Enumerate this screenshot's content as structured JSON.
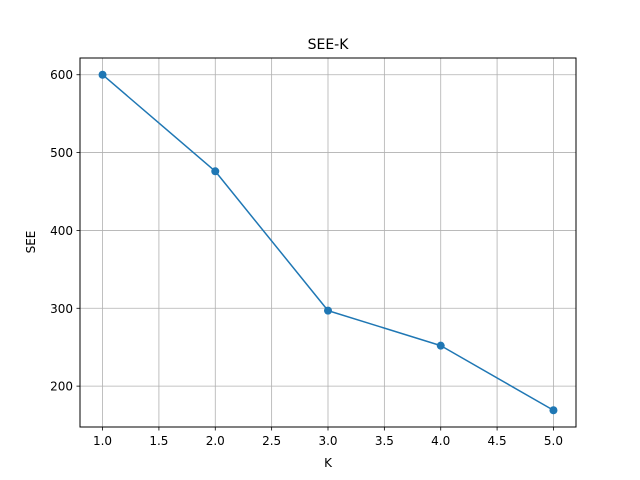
{
  "chart_data": {
    "type": "line",
    "title": "SEE-K",
    "xlabel": "K",
    "ylabel": "SEE",
    "x": [
      1.0,
      2.0,
      3.0,
      4.0,
      5.0
    ],
    "series": [
      {
        "values": [
          600,
          476,
          297,
          252,
          169
        ],
        "color": "#1f77b4",
        "marker": "circle"
      }
    ],
    "xlim": [
      0.8,
      5.2
    ],
    "ylim": [
      147.5,
      621.5
    ],
    "xticks": [
      "1.0",
      "1.5",
      "2.0",
      "2.5",
      "3.0",
      "3.5",
      "4.0",
      "4.5",
      "5.0"
    ],
    "yticks": [
      "200",
      "300",
      "400",
      "500",
      "600"
    ],
    "grid": true
  }
}
